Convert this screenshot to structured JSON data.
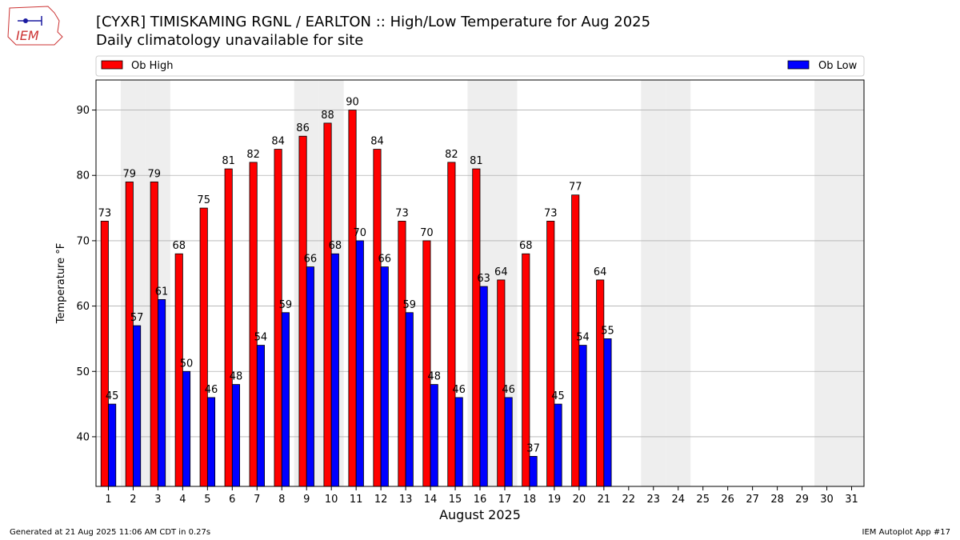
{
  "header": {
    "title": "[CYXR] TIMISKAMING RGNL / EARLTON :: High/Low Temperature for Aug 2025",
    "subtitle": "Daily climatology unavailable for site"
  },
  "logo": {
    "text": "IEM"
  },
  "footer": {
    "generated": "Generated at 21 Aug 2025 11:06 AM CDT in 0.27s",
    "app": "IEM Autoplot App #17"
  },
  "colors": {
    "high": "#ff0000",
    "low": "#0000ff",
    "weekend_band": "#eeeeee",
    "grid": "#b0b0b0"
  },
  "chart_data": {
    "type": "bar",
    "xlabel": "August 2025",
    "ylabel": "Temperature °F",
    "ylim": [
      32.4,
      94.6
    ],
    "yticks": [
      40,
      50,
      60,
      70,
      80,
      90
    ],
    "grid": "horizontal",
    "legend": "top",
    "categories": [
      "1",
      "2",
      "3",
      "4",
      "5",
      "6",
      "7",
      "8",
      "9",
      "10",
      "11",
      "12",
      "13",
      "14",
      "15",
      "16",
      "17",
      "18",
      "19",
      "20",
      "21",
      "22",
      "23",
      "24",
      "25",
      "26",
      "27",
      "28",
      "29",
      "30",
      "31"
    ],
    "series": [
      {
        "name": "Ob High",
        "color": "#ff0000",
        "values": [
          73,
          79,
          79,
          68,
          75,
          81,
          82,
          84,
          86,
          88,
          90,
          84,
          73,
          70,
          82,
          81,
          64,
          68,
          73,
          77,
          64,
          null,
          null,
          null,
          null,
          null,
          null,
          null,
          null,
          null,
          null
        ]
      },
      {
        "name": "Ob Low",
        "color": "#0000ff",
        "values": [
          45,
          57,
          61,
          50,
          46,
          48,
          54,
          59,
          66,
          68,
          70,
          66,
          59,
          48,
          46,
          63,
          46,
          37,
          45,
          54,
          55,
          null,
          null,
          null,
          null,
          null,
          null,
          null,
          null,
          null,
          null
        ]
      }
    ],
    "weekend_days": [
      2,
      3,
      9,
      10,
      16,
      17,
      23,
      24,
      30,
      31
    ]
  }
}
